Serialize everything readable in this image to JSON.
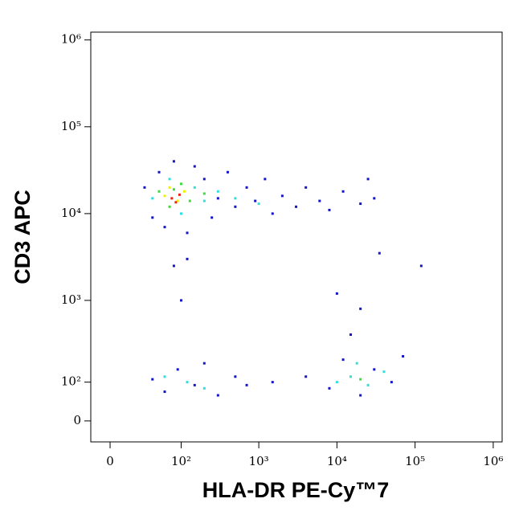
{
  "chart_data": {
    "type": "scatter",
    "x_label": "HLA-DR PE-Cy™7",
    "y_label": "CD3 APC",
    "xscale": "biexponential",
    "yscale": "biexponential",
    "xlim": [
      -15,
      1300000
    ],
    "ylim": [
      -48,
      1230000
    ],
    "xticks": [
      0,
      {
        "value": 100,
        "label": "10²"
      },
      {
        "value": 1000,
        "label": "10³"
      },
      {
        "value": 10000,
        "label": "10⁴"
      },
      {
        "value": 100000,
        "label": "10⁵"
      },
      {
        "value": 1000000,
        "label": "10⁶"
      }
    ],
    "yticks": [
      0,
      {
        "value": 100,
        "label": "10²"
      },
      {
        "value": 1000,
        "label": "10³"
      },
      {
        "value": 10000,
        "label": "10⁴"
      },
      {
        "value": 100000,
        "label": "10⁵"
      },
      {
        "value": 1000000,
        "label": "10⁶"
      }
    ],
    "series": [
      {
        "color": "#1414c8",
        "x": [
          30,
          40,
          50,
          60,
          80,
          120,
          150,
          200,
          250,
          300,
          400,
          500,
          700,
          900,
          1200,
          1500,
          2000,
          3000,
          4000,
          6000,
          8000,
          12000,
          20000,
          30000,
          25000,
          120,
          80,
          40,
          60,
          90,
          150,
          200,
          300,
          500,
          700,
          1500,
          4000,
          8000,
          12000,
          20000,
          30000,
          50000,
          70000,
          15000,
          20000,
          10000,
          120000,
          35000,
          100
        ],
        "values": [
          20000,
          9000,
          30000,
          7000,
          40000,
          6000,
          35000,
          25000,
          9000,
          15000,
          30000,
          12000,
          20000,
          14000,
          25000,
          10000,
          16000,
          12000,
          20000,
          14000,
          11000,
          18000,
          13000,
          15000,
          25000,
          3000,
          2500,
          110,
          70,
          150,
          90,
          180,
          60,
          120,
          90,
          100,
          120,
          80,
          200,
          60,
          150,
          100,
          220,
          400,
          800,
          1200,
          2500,
          3500,
          1000
        ]
      },
      {
        "color": "#30dede",
        "x": [
          40,
          70,
          100,
          150,
          200,
          300,
          500,
          1000,
          60,
          120,
          200,
          15000,
          25000,
          40000,
          18000,
          10000
        ],
        "values": [
          15000,
          25000,
          10000,
          20000,
          14000,
          18000,
          15000,
          13000,
          120,
          100,
          80,
          120,
          90,
          140,
          180,
          100
        ]
      },
      {
        "color": "#3cdc3c",
        "x": [
          50,
          70,
          100,
          130,
          200,
          80,
          20000
        ],
        "values": [
          18000,
          12000,
          22000,
          14000,
          17000,
          19000,
          110
        ]
      },
      {
        "color": "#f0f000",
        "x": [
          60,
          90,
          110,
          70
        ],
        "values": [
          16000,
          14000,
          18000,
          20000
        ]
      },
      {
        "color": "#f02010",
        "x": [
          75,
          95,
          85
        ],
        "values": [
          15000,
          16500,
          13500
        ]
      }
    ]
  }
}
